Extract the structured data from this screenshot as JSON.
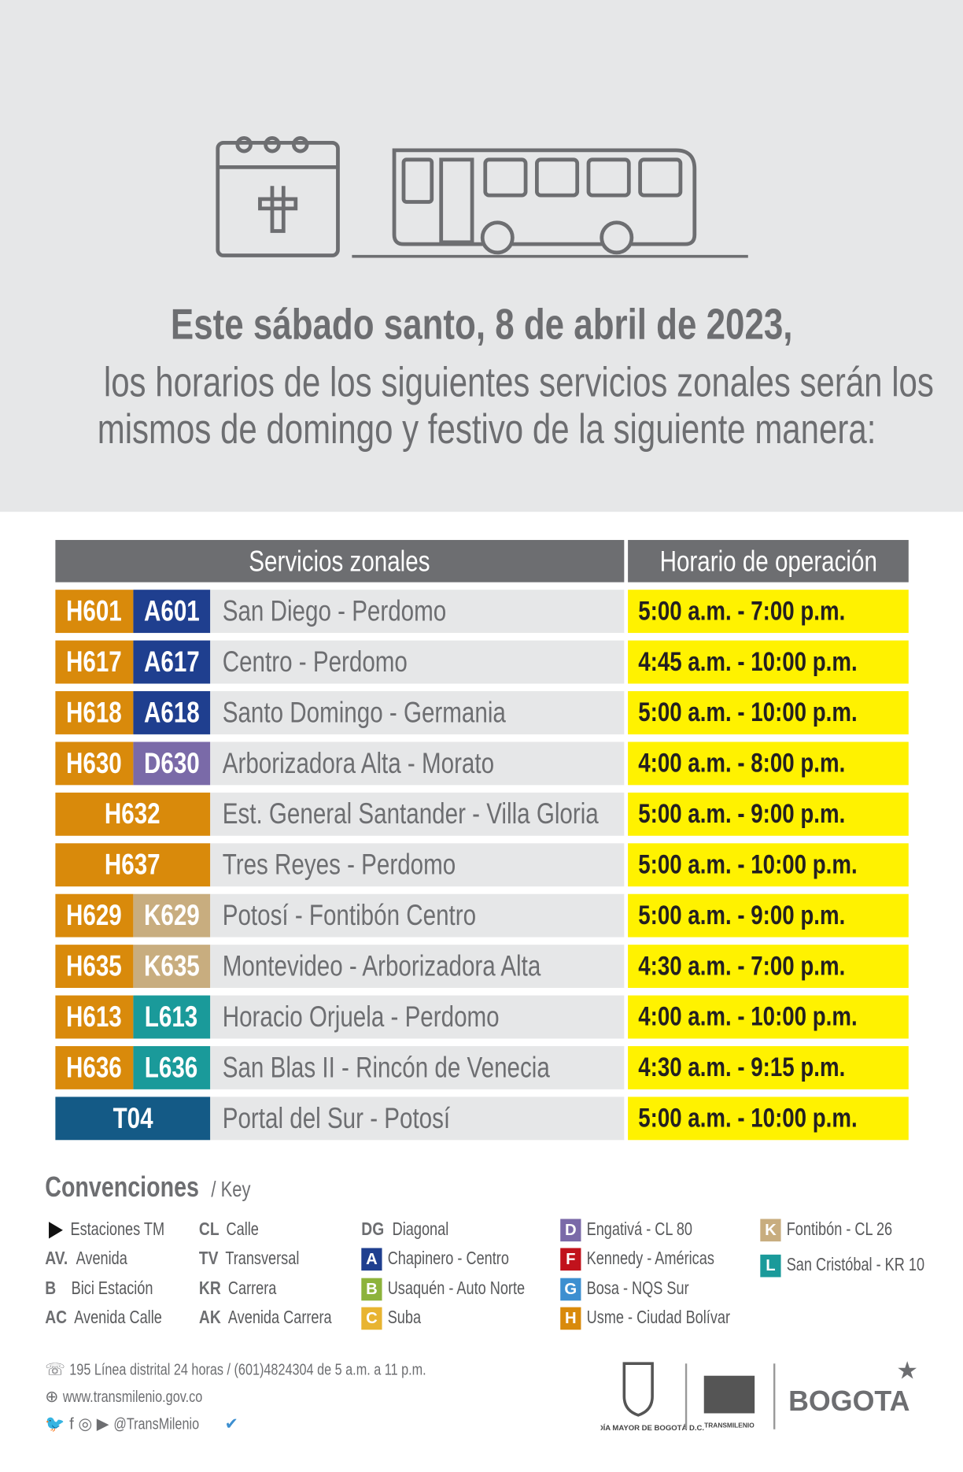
{
  "header": {
    "title": "Este sábado santo, 8 de abril de 2023,",
    "subtitle_lines": [
      "los horarios de los siguientes servicios zonales serán los",
      "mismos de domingo y festivo de la siguiente manera:"
    ]
  },
  "table": {
    "headers": [
      "Servicios zonales",
      "Horario de operación"
    ],
    "rows": [
      {
        "codes": [
          "H601",
          "A601"
        ],
        "route": "San Diego - Perdomo",
        "hours": "5:00 a.m. - 7:00 p.m."
      },
      {
        "codes": [
          "H617",
          "A617"
        ],
        "route": "Centro - Perdomo",
        "hours": "4:45 a.m. - 10:00 p.m."
      },
      {
        "codes": [
          "H618",
          "A618"
        ],
        "route": "Santo Domingo - Germania",
        "hours": "5:00 a.m. - 10:00 p.m."
      },
      {
        "codes": [
          "H630",
          "D630"
        ],
        "route": "Arborizadora Alta - Morato",
        "hours": "4:00 a.m. - 8:00 p.m."
      },
      {
        "codes": [
          "H632"
        ],
        "route": "Est. General Santander - Villa Gloria",
        "hours": "5:00 a.m. - 9:00 p.m."
      },
      {
        "codes": [
          "H637"
        ],
        "route": "Tres Reyes - Perdomo",
        "hours": "5:00 a.m. - 10:00 p.m."
      },
      {
        "codes": [
          "H629",
          "K629"
        ],
        "route": "Potosí - Fontibón Centro",
        "hours": "5:00 a.m. - 9:00 p.m."
      },
      {
        "codes": [
          "H635",
          "K635"
        ],
        "route": "Montevideo - Arborizadora Alta",
        "hours": "4:30 a.m. - 7:00 p.m."
      },
      {
        "codes": [
          "H613",
          "L613"
        ],
        "route": "Horacio Orjuela - Perdomo",
        "hours": "4:00 a.m. - 10:00 p.m."
      },
      {
        "codes": [
          "H636",
          "L636"
        ],
        "route": "San Blas II - Rincón de Venecia",
        "hours": "4:30 a.m. - 9:15 p.m."
      },
      {
        "codes": [
          "T04"
        ],
        "route": "Portal del Sur - Potosí",
        "hours": "5:00 a.m. - 10:00 p.m."
      }
    ]
  },
  "key": {
    "title": "Convenciones",
    "subtitle": "/ Key",
    "columns": [
      [
        {
          "label": "Estaciones TM"
        },
        {
          "symbol": "AV.",
          "label": "Avenida"
        },
        {
          "symbol": "B",
          "label": "Bici Estación"
        },
        {
          "symbol": "AC",
          "label": "Avenida Calle"
        }
      ],
      [
        {
          "symbol": "CL",
          "label": "Calle"
        },
        {
          "symbol": "TV",
          "label": "Transversal"
        },
        {
          "symbol": "KR",
          "label": "Carrera"
        },
        {
          "symbol": "AK",
          "label": "Avenida Carrera"
        }
      ],
      [
        {
          "symbol": "DG",
          "label": "Diagonal"
        },
        {
          "symbol": "A",
          "label": "Chapinero - Centro",
          "color": "#1f3f8f"
        },
        {
          "symbol": "B",
          "label": "Usaquén - Auto Norte",
          "color": "#8db33c"
        },
        {
          "symbol": "C",
          "label": "Suba",
          "color": "#e8b431"
        }
      ],
      [
        {
          "symbol": "D",
          "label": "Engativá - CL 80",
          "color": "#7a6aa8"
        },
        {
          "symbol": "F",
          "label": "Kennedy - Américas",
          "color": "#c1121c"
        },
        {
          "symbol": "G",
          "label": "Bosa - NQS Sur",
          "color": "#3d8fd0"
        },
        {
          "symbol": "H",
          "label": "Usme - Ciudad Bolívar",
          "color": "#d98a0b"
        }
      ],
      [
        {
          "symbol": "K",
          "label": "Fontibón - CL 26",
          "color": "#c8ad7f"
        },
        {
          "symbol": "L",
          "label": "San Cristóbal - KR 10",
          "color": "#1a9a9a"
        }
      ]
    ]
  },
  "footer": {
    "phone": "195 Línea distrital 24 horas / (601)4824304 de 5 a.m. a 11 p.m.",
    "web": "www.transmilenio.gov.co",
    "social": "@TransMilenio",
    "logos": [
      "ALCALDÍA MAYOR DE BOGOTÁ D.C.",
      "TRANSMILENIO",
      "BOGOTA"
    ]
  }
}
